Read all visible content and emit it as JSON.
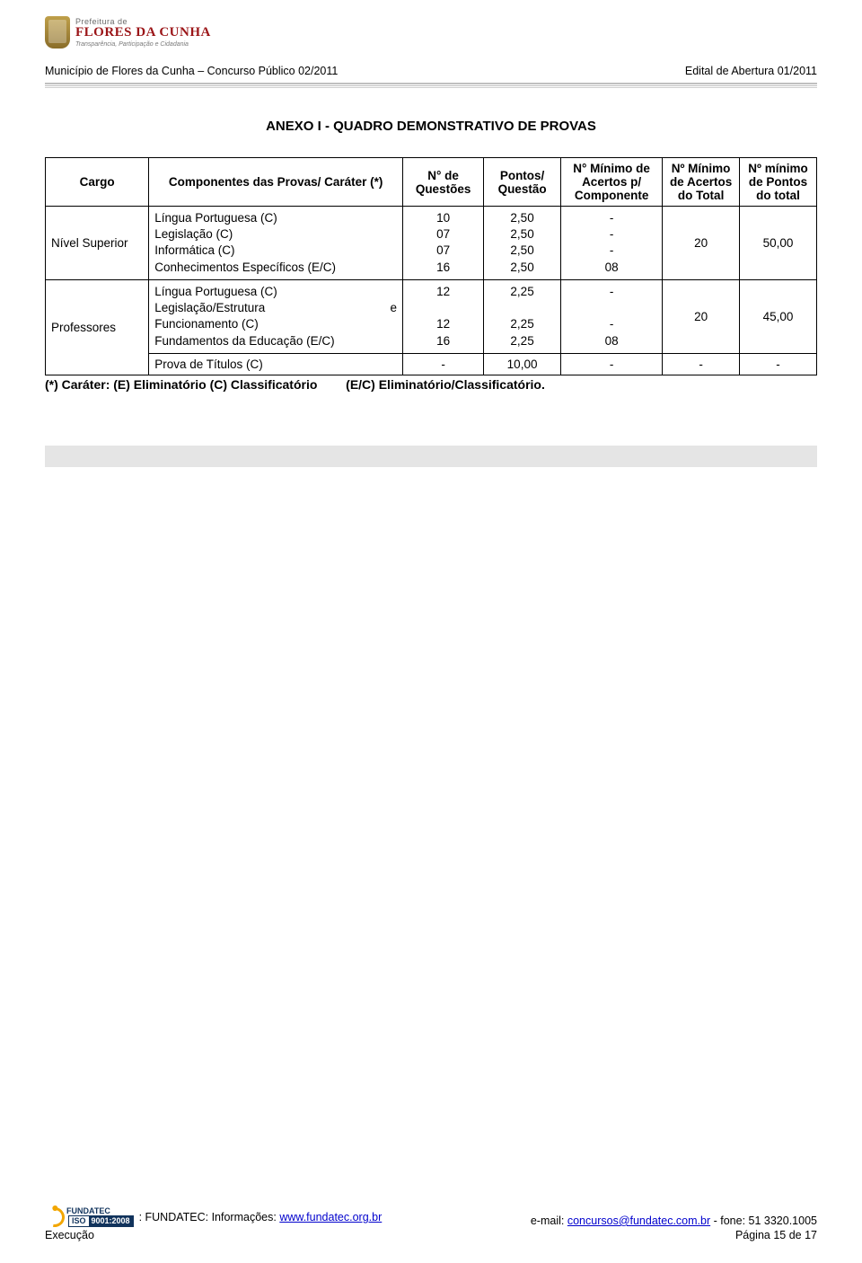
{
  "header": {
    "logo_line1": "Prefeitura de",
    "logo_line2": "FLORES DA CUNHA",
    "logo_line3": "Transparência, Participação e Cidadania",
    "left": "Município de Flores da Cunha – Concurso Público 02/2011",
    "right": "Edital de Abertura 01/2011"
  },
  "section_title": "ANEXO I - QUADRO DEMONSTRATIVO DE PROVAS",
  "table": {
    "columns": {
      "cargo": "Cargo",
      "componentes": "Componentes das Provas/ Caráter (*)",
      "n_questoes": "N° de Questões",
      "pontos_questao": "Pontos/ Questão",
      "n_min_acertos_componente": "N° Mínimo de Acertos p/ Componente",
      "n_min_acertos_total": "Nº Mínimo de Acertos do Total",
      "n_min_pontos_total": "Nº mínimo de Pontos do total"
    },
    "rows": [
      {
        "cargo": "Nível Superior",
        "componentes": [
          "Língua Portuguesa (C)",
          "Legislação (C)",
          "Informática (C)",
          "Conhecimentos Específicos (E/C)"
        ],
        "n_questoes": [
          "10",
          "07",
          "07",
          "16"
        ],
        "pontos_questao": [
          "2,50",
          "2,50",
          "2,50",
          "2,50"
        ],
        "n_min_acertos_componente": [
          "-",
          "-",
          "-",
          "08"
        ],
        "n_min_acertos_total": "20",
        "n_min_pontos_total": "50,00"
      },
      {
        "cargo": "Professores",
        "componentes_lines": [
          {
            "left": "Língua Portuguesa (C)",
            "right": ""
          },
          {
            "left": "Legislação/Estrutura",
            "right": "e"
          },
          {
            "left": "Funcionamento (C)",
            "right": ""
          },
          {
            "left": "Fundamentos da Educação (E/C)",
            "right": ""
          }
        ],
        "n_questoes": [
          "12",
          "",
          "12",
          "16"
        ],
        "pontos_questao": [
          "2,25",
          "",
          "2,25",
          "2,25"
        ],
        "n_min_acertos_componente": [
          "-",
          "",
          "-",
          "08"
        ],
        "n_min_acertos_total": "20",
        "n_min_pontos_total": "45,00"
      },
      {
        "cargo": "",
        "componentes": [
          "Prova de Títulos (C)"
        ],
        "n_questoes": [
          "-"
        ],
        "pontos_questao": [
          "10,00"
        ],
        "n_min_acertos_componente": [
          "-"
        ],
        "n_min_acertos_total": "-",
        "n_min_pontos_total": "-"
      }
    ]
  },
  "legend": {
    "part1": "(*) Caráter: (E) Eliminatório (C) Classificatório",
    "part2": "(E/C) Eliminatório/Classificatório."
  },
  "footer": {
    "fundatec_label": "FUNDATEC",
    "iso_a": "ISO",
    "iso_b": "9001:2008",
    "info_prefix": " :  FUNDATEC: Informações: ",
    "info_url": "www.fundatec.org.br",
    "email_prefix": "e-mail: ",
    "email": "concursos@fundatec.com.br",
    "phone": " - fone: 51 3320.1005",
    "execucao": "Execução",
    "pagina": "Página 15 de 17"
  }
}
